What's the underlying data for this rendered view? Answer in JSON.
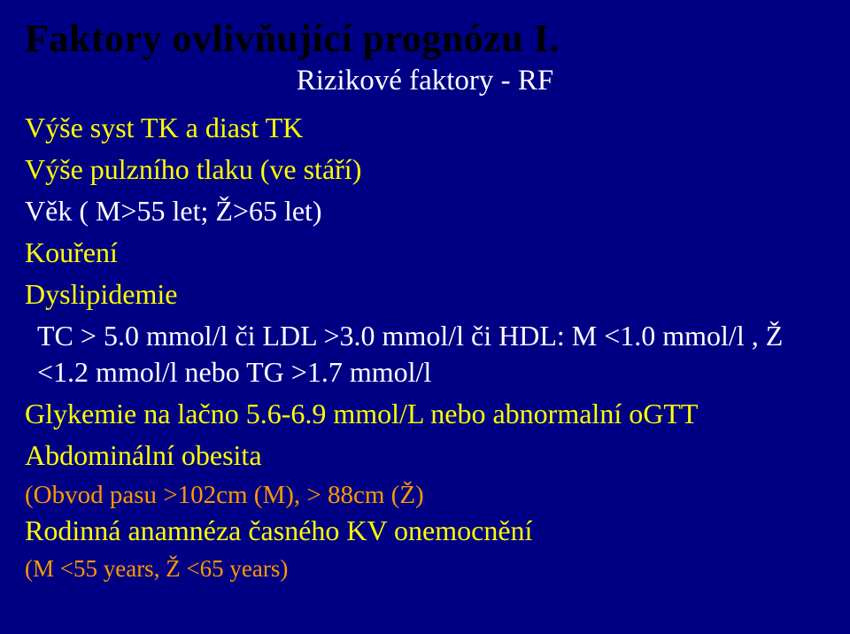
{
  "title": "Faktory ovlivňující prognózu I.",
  "subtitle": "Rizikové faktory - RF",
  "lines": {
    "l1": "Výše syst TK a diast TK",
    "l2": "Výše pulzního tlaku (ve stáří)",
    "l3": "Věk ( M>55 let; Ž>65 let)",
    "l4": "Kouření",
    "l5": "Dyslipidemie",
    "l5_detail": "TC > 5.0 mmol/l či LDL >3.0 mmol/l či HDL: M <1.0 mmol/l , Ž <1.2 mmol/l  nebo  TG >1.7 mmol/l",
    "l6": "Glykemie na lačno 5.6-6.9 mmol/L nebo abnormalní oGTT",
    "l7": "Abdominální obesita",
    "l7_sub": "(Obvod pasu >102cm (M), > 88cm (Ž)",
    "l8": "Rodinná anamnéza časného KV onemocnění",
    "l8_sub": "(M  <55 years, Ž <65 years)"
  },
  "colors": {
    "background": "#000084",
    "title": "#000000",
    "subtitle": "#ffffff",
    "highlight": "#ffff00",
    "detail": "#ffffff",
    "sub": "#ff9900"
  },
  "fontsize": {
    "title": 44,
    "subtitle": 33,
    "line": 32,
    "detail": 32,
    "sub": 29
  }
}
